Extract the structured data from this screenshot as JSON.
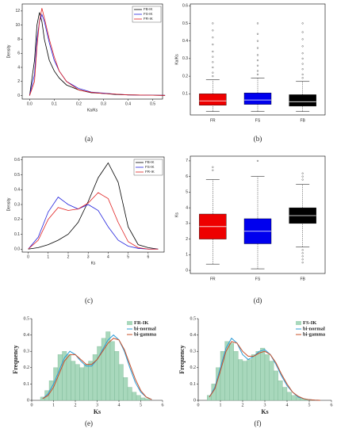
{
  "chart_data": [
    {
      "type": "line",
      "label": "(a)",
      "xlabel": "Ka/Ks",
      "ylabel": "Density",
      "x": [
        0,
        0.02,
        0.03,
        0.04,
        0.05,
        0.06,
        0.08,
        0.1,
        0.12,
        0.15,
        0.2,
        0.25,
        0.3,
        0.35,
        0.4,
        0.5,
        0.55
      ],
      "series": [
        {
          "name": "FB-IK",
          "color": "#000000",
          "values": [
            0,
            5,
            10,
            11.8,
            10.5,
            8,
            5,
            3.5,
            2.5,
            1.5,
            0.8,
            0.4,
            0.3,
            0.15,
            0.1,
            0.05,
            0.03
          ]
        },
        {
          "name": "FS-IK",
          "color": "#2222dd",
          "values": [
            0,
            3,
            8,
            10.5,
            11.5,
            10.5,
            7.5,
            5,
            3.5,
            2,
            1,
            0.5,
            0.35,
            0.2,
            0.1,
            0.05,
            0.03
          ]
        },
        {
          "name": "FR-IK",
          "color": "#e02020",
          "values": [
            0,
            2,
            7,
            10.5,
            12.4,
            11,
            8,
            5.5,
            3.5,
            2,
            0.8,
            0.45,
            0.3,
            0.2,
            0.1,
            0.05,
            0.03
          ]
        }
      ],
      "xlim": [
        -0.03,
        0.54
      ],
      "xticks": [
        {
          "value": 0,
          "label": "0.0"
        },
        0.1,
        0.2,
        0.3,
        0.4,
        0.5
      ],
      "ylim": [
        -0.5,
        13
      ],
      "yticks": [
        0,
        2,
        4,
        6,
        8,
        10,
        12
      ],
      "legend": "top-right"
    },
    {
      "type": "box",
      "label": "(b)",
      "ylabel": "Ka/Ks",
      "categories": [
        "FR",
        "FS",
        "FB"
      ],
      "colors": [
        "#ee0000",
        "#0000ee",
        "#000000"
      ],
      "boxes": [
        {
          "whislo": 0,
          "q1": 0.035,
          "med": 0.06,
          "q3": 0.1,
          "whishi": 0.18,
          "fliers": [
            0.2,
            0.22,
            0.25,
            0.28,
            0.31,
            0.34,
            0.38,
            0.42,
            0.46,
            0.5
          ]
        },
        {
          "whislo": 0,
          "q1": 0.04,
          "med": 0.065,
          "q3": 0.105,
          "whishi": 0.19,
          "fliers": [
            0.21,
            0.23,
            0.26,
            0.29,
            0.32,
            0.36,
            0.4,
            0.44,
            0.5
          ]
        },
        {
          "whislo": 0,
          "q1": 0.03,
          "med": 0.055,
          "q3": 0.095,
          "whishi": 0.17,
          "fliers": [
            0.19,
            0.21,
            0.24,
            0.27,
            0.3,
            0.33,
            0.37,
            0.41,
            0.45,
            0.5
          ]
        }
      ],
      "ylim": [
        -0.02,
        0.61
      ],
      "yticks": [
        0.1,
        0.2,
        0.3,
        0.4,
        0.5,
        0.6
      ]
    },
    {
      "type": "line",
      "label": "(c)",
      "xlabel": "Ks",
      "ylabel": "Density",
      "x": [
        0,
        0.5,
        1,
        1.5,
        2,
        2.5,
        3,
        3.5,
        4,
        4.5,
        5,
        5.5,
        6,
        6.5
      ],
      "series": [
        {
          "name": "FB-IK",
          "color": "#000000",
          "values": [
            0,
            0.01,
            0.03,
            0.06,
            0.1,
            0.18,
            0.32,
            0.48,
            0.58,
            0.45,
            0.15,
            0.03,
            0.01,
            0
          ]
        },
        {
          "name": "FS-IK",
          "color": "#2222dd",
          "values": [
            0,
            0.08,
            0.25,
            0.35,
            0.3,
            0.27,
            0.3,
            0.26,
            0.15,
            0.06,
            0.02,
            0.005,
            0,
            0
          ]
        },
        {
          "name": "FR-IK",
          "color": "#e02020",
          "values": [
            0,
            0.06,
            0.2,
            0.28,
            0.26,
            0.27,
            0.31,
            0.38,
            0.34,
            0.18,
            0.05,
            0.01,
            0,
            0
          ]
        }
      ],
      "xlim": [
        -0.3,
        6.8
      ],
      "xticks": [
        0,
        1,
        2,
        3,
        4,
        5,
        6
      ],
      "ylim": [
        -0.02,
        0.62
      ],
      "yticks": [
        {
          "value": 0,
          "label": "0.0"
        },
        0.1,
        0.2,
        0.3,
        0.4,
        0.5,
        0.6
      ],
      "legend": "top-right"
    },
    {
      "type": "box",
      "label": "(d)",
      "ylabel": "Ks",
      "categories": [
        "FR",
        "FS",
        "FB"
      ],
      "colors": [
        "#ee0000",
        "#0000ee",
        "#000000"
      ],
      "boxes": [
        {
          "whislo": 0.4,
          "q1": 2,
          "med": 2.8,
          "q3": 3.6,
          "whishi": 5.8,
          "fliers": [
            6.4,
            6.6
          ]
        },
        {
          "whislo": 0.1,
          "q1": 1.7,
          "med": 2.5,
          "q3": 3.3,
          "whishi": 6,
          "fliers": [
            7
          ]
        },
        {
          "whislo": 1.5,
          "q1": 3,
          "med": 3.5,
          "q3": 4,
          "whishi": 5.5,
          "fliers": [
            0.5,
            0.7,
            0.9,
            1.1,
            1.3,
            5.8,
            6,
            6.2
          ]
        }
      ],
      "ylim": [
        -0.2,
        7.3
      ],
      "yticks": [
        0,
        1,
        2,
        3,
        4,
        5,
        6,
        7
      ]
    },
    {
      "type": "histogram",
      "label": "(e)",
      "xlabel": "Ks",
      "ylabel": "Frequency",
      "histogram": {
        "name": "FR-IK",
        "color": "#a8d8bc",
        "bins": [
          0.4,
          0.6,
          0.8,
          1,
          1.2,
          1.4,
          1.6,
          1.8,
          2,
          2.2,
          2.4,
          2.6,
          2.8,
          3,
          3.2,
          3.4,
          3.6,
          3.8,
          4,
          4.2,
          4.4,
          4.6,
          4.8,
          5,
          5.2,
          5.4
        ],
        "values": [
          0.02,
          0.06,
          0.12,
          0.2,
          0.28,
          0.3,
          0.28,
          0.24,
          0.22,
          0.2,
          0.22,
          0.24,
          0.28,
          0.33,
          0.38,
          0.42,
          0.36,
          0.3,
          0.22,
          0.14,
          0.08,
          0.05,
          0.03,
          0.015,
          0.01
        ]
      },
      "x": [
        0.5,
        0.75,
        1,
        1.25,
        1.5,
        1.75,
        2,
        2.25,
        2.5,
        2.75,
        3,
        3.25,
        3.5,
        3.75,
        4,
        4.25,
        4.5,
        4.75,
        5,
        5.25,
        5.5
      ],
      "series": [
        {
          "name": "bi-normal",
          "color": "#2a9bd6",
          "values": [
            0.01,
            0.04,
            0.1,
            0.18,
            0.26,
            0.3,
            0.28,
            0.24,
            0.21,
            0.21,
            0.25,
            0.31,
            0.37,
            0.4,
            0.37,
            0.3,
            0.2,
            0.11,
            0.05,
            0.02,
            0.005
          ]
        },
        {
          "name": "bi-gamma",
          "color": "#c8502a",
          "values": [
            0.01,
            0.03,
            0.08,
            0.16,
            0.24,
            0.28,
            0.28,
            0.25,
            0.22,
            0.22,
            0.25,
            0.3,
            0.35,
            0.38,
            0.37,
            0.31,
            0.22,
            0.13,
            0.06,
            0.02,
            0.005
          ]
        }
      ],
      "xlim": [
        0,
        6
      ],
      "xticks": [
        0,
        1,
        2,
        3,
        4,
        5,
        6
      ],
      "ylim": [
        0,
        0.5
      ],
      "yticks": [
        0,
        0.1,
        0.2,
        0.3,
        0.4,
        0.5
      ],
      "legend": "top-right"
    },
    {
      "type": "histogram",
      "label": "(f)",
      "xlabel": "Ks",
      "ylabel": "Frequency",
      "histogram": {
        "name": "FS-IK",
        "color": "#a8d8bc",
        "bins": [
          0.4,
          0.6,
          0.8,
          1,
          1.2,
          1.4,
          1.6,
          1.8,
          2,
          2.2,
          2.4,
          2.6,
          2.8,
          3,
          3.2,
          3.4,
          3.6,
          3.8,
          4,
          4.2,
          4.4,
          4.6,
          4.8,
          5,
          5.2,
          5.4
        ],
        "values": [
          0.03,
          0.1,
          0.2,
          0.3,
          0.36,
          0.35,
          0.3,
          0.25,
          0.24,
          0.25,
          0.28,
          0.3,
          0.32,
          0.28,
          0.24,
          0.18,
          0.12,
          0.08,
          0.05,
          0.03,
          0.02,
          0.01,
          0.005,
          0.003,
          0.002
        ]
      },
      "x": [
        0.5,
        0.75,
        1,
        1.25,
        1.5,
        1.75,
        2,
        2.25,
        2.5,
        2.75,
        3,
        3.25,
        3.5,
        3.75,
        4,
        4.25,
        4.5,
        4.75,
        5,
        5.25,
        5.5
      ],
      "series": [
        {
          "name": "bi-normal",
          "color": "#2a9bd6",
          "values": [
            0.02,
            0.08,
            0.2,
            0.32,
            0.38,
            0.35,
            0.28,
            0.25,
            0.27,
            0.3,
            0.31,
            0.28,
            0.22,
            0.15,
            0.09,
            0.05,
            0.02,
            0.01,
            0.004,
            0.001,
            0
          ]
        },
        {
          "name": "bi-gamma",
          "color": "#c8502a",
          "values": [
            0.02,
            0.07,
            0.18,
            0.3,
            0.36,
            0.35,
            0.3,
            0.27,
            0.27,
            0.29,
            0.3,
            0.28,
            0.23,
            0.16,
            0.1,
            0.05,
            0.025,
            0.01,
            0.004,
            0.001,
            0
          ]
        }
      ],
      "xlim": [
        0,
        6
      ],
      "xticks": [
        0,
        1,
        2,
        3,
        4,
        5,
        6
      ],
      "ylim": [
        0,
        0.5
      ],
      "yticks": [
        0,
        0.1,
        0.2,
        0.3,
        0.4,
        0.5
      ],
      "legend": "top-right"
    }
  ]
}
